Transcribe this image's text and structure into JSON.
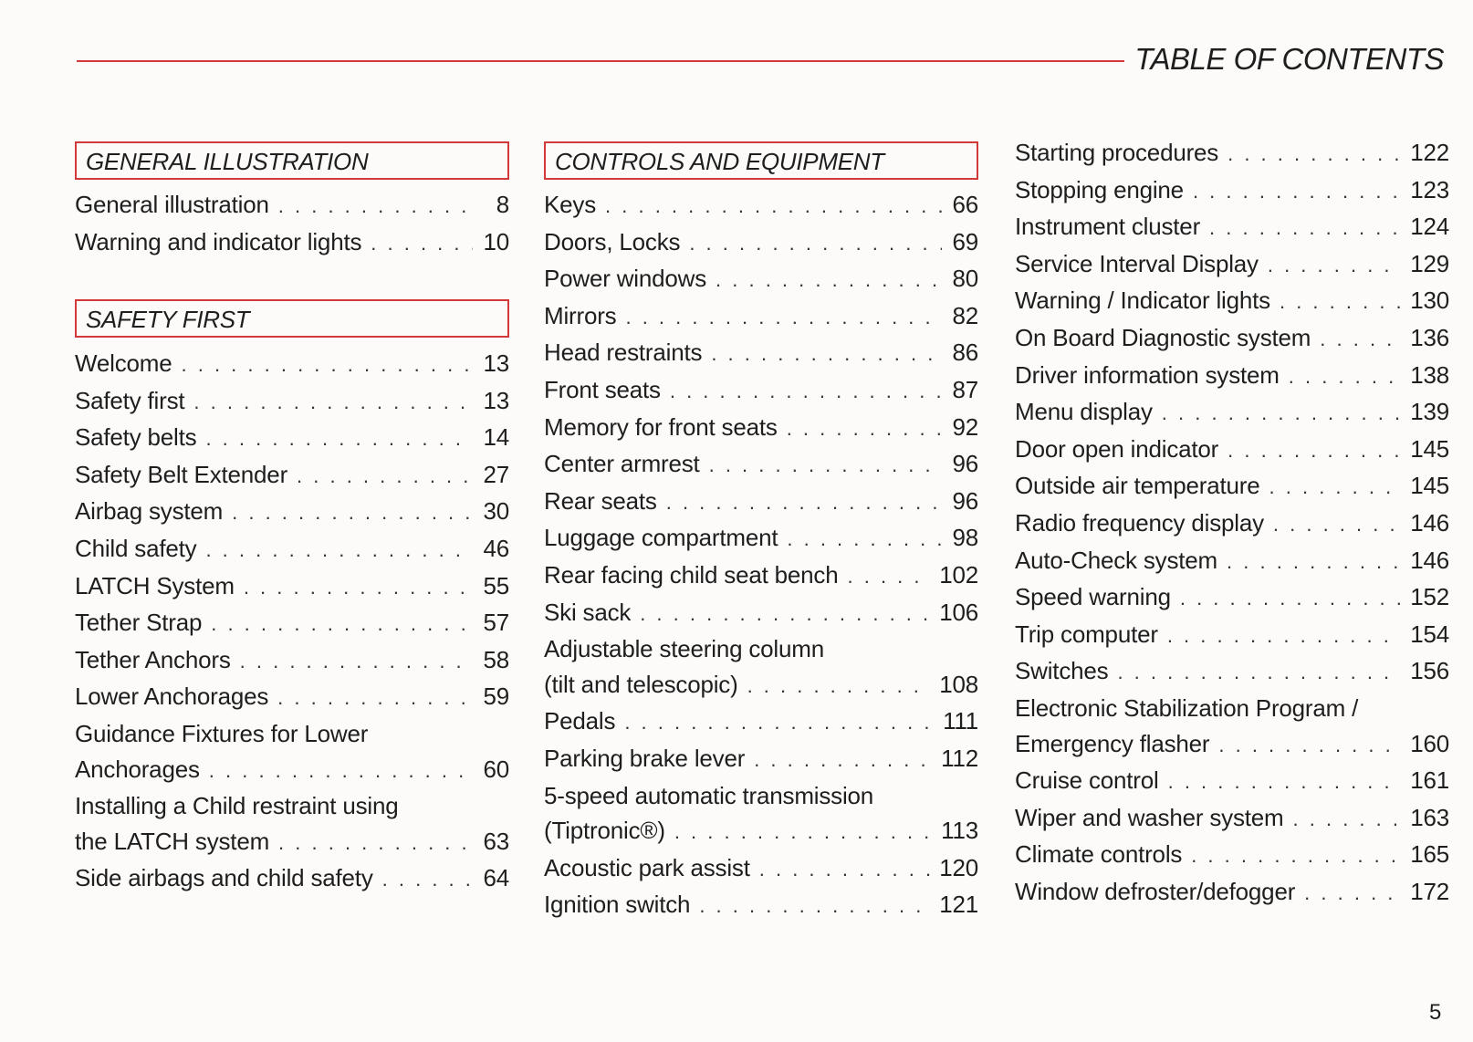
{
  "header": {
    "title": "TABLE OF CONTENTS",
    "accent_color": "#d23a3a"
  },
  "columns": [
    {
      "sections": [
        {
          "heading": "GENERAL ILLUSTRATION",
          "entries": [
            {
              "title": "General illustration",
              "page": "8"
            },
            {
              "title": "Warning and indicator lights",
              "page": "10"
            }
          ]
        },
        {
          "heading": "SAFETY FIRST",
          "entries": [
            {
              "title": "Welcome",
              "page": "13"
            },
            {
              "title": "Safety first",
              "page": "13"
            },
            {
              "title": "Safety belts",
              "page": "14"
            },
            {
              "title": "Safety Belt Extender",
              "page": "27"
            },
            {
              "title": "Airbag system",
              "page": "30"
            },
            {
              "title": "Child safety",
              "page": "46"
            },
            {
              "title": "LATCH System",
              "page": "55"
            },
            {
              "title": "Tether Strap",
              "page": "57"
            },
            {
              "title": "Tether Anchors",
              "page": "58"
            },
            {
              "title": "Lower Anchorages",
              "page": "59"
            },
            {
              "title": "Guidance Fixtures for Lower",
              "title_cont": "Anchorages",
              "page": "60"
            },
            {
              "title": "Installing a Child restraint using",
              "title_cont": "the LATCH system",
              "page": "63"
            },
            {
              "title": "Side airbags and child safety",
              "page": "64"
            }
          ]
        }
      ]
    },
    {
      "sections": [
        {
          "heading": "CONTROLS AND EQUIPMENT",
          "entries": [
            {
              "title": "Keys",
              "page": "66"
            },
            {
              "title": "Doors, Locks",
              "page": "69"
            },
            {
              "title": "Power windows",
              "page": "80"
            },
            {
              "title": "Mirrors",
              "page": "82"
            },
            {
              "title": "Head restraints",
              "page": "86"
            },
            {
              "title": "Front  seats",
              "page": "87"
            },
            {
              "title": "Memory for front seats",
              "page": "92"
            },
            {
              "title": "Center armrest",
              "page": "96"
            },
            {
              "title": "Rear seats",
              "page": "96"
            },
            {
              "title": "Luggage compartment",
              "page": "98"
            },
            {
              "title": "Rear facing child seat bench",
              "page": "102"
            },
            {
              "title": "Ski sack",
              "page": "106"
            },
            {
              "title": "Adjustable steering column",
              "title_cont": "(tilt and telescopic)",
              "page": "108"
            },
            {
              "title": "Pedals",
              "page": "111"
            },
            {
              "title": "Parking brake lever",
              "page": "112"
            },
            {
              "title": "5-speed automatic transmission",
              "title_cont": "(Tiptronic®)",
              "page": "113"
            },
            {
              "title": "Acoustic park assist",
              "page": "120"
            },
            {
              "title": "Ignition switch",
              "page": "121"
            }
          ]
        }
      ]
    },
    {
      "sections": [
        {
          "heading": "",
          "entries": [
            {
              "title": "Starting procedures",
              "page": "122"
            },
            {
              "title": "Stopping engine",
              "page": "123"
            },
            {
              "title": "Instrument cluster",
              "page": "124"
            },
            {
              "title": "Service Interval Display",
              "page": "129"
            },
            {
              "title": "Warning / Indicator lights",
              "page": "130"
            },
            {
              "title": "On Board Diagnostic system",
              "page": "136"
            },
            {
              "title": "Driver information system",
              "page": "138"
            },
            {
              "title": "Menu display",
              "page": "139"
            },
            {
              "title": "Door open indicator",
              "page": "145"
            },
            {
              "title": "Outside air temperature",
              "page": "145"
            },
            {
              "title": "Radio frequency display",
              "page": "146"
            },
            {
              "title": "Auto-Check system",
              "page": "146"
            },
            {
              "title": "Speed warning",
              "page": "152"
            },
            {
              "title": "Trip computer",
              "page": "154"
            },
            {
              "title": "Switches",
              "page": "156"
            },
            {
              "title": "Electronic Stabilization Program /",
              "title_cont": "Emergency flasher",
              "page": "160"
            },
            {
              "title": "Cruise control",
              "page": "161"
            },
            {
              "title": "Wiper and washer system",
              "page": "163"
            },
            {
              "title": "Climate controls",
              "page": "165"
            },
            {
              "title": "Window defroster/defogger",
              "page": "172"
            }
          ]
        }
      ]
    }
  ],
  "footer": {
    "page_number": "5"
  }
}
